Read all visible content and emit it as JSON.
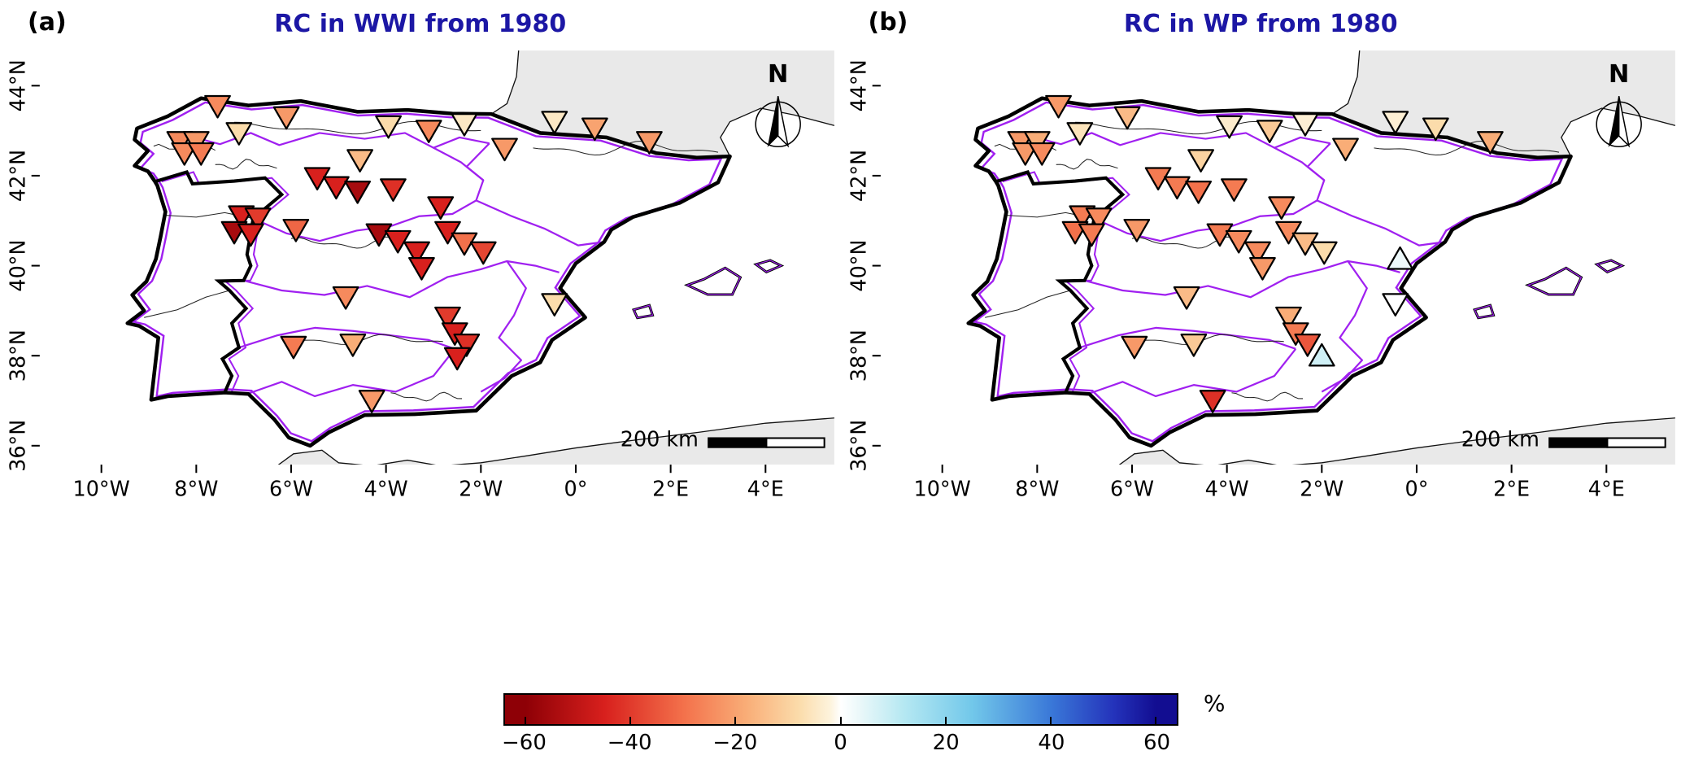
{
  "colors": {
    "title_blue": "#1c17a5",
    "basin_purple": "#a020f0",
    "land_gray": "#e9e9e9",
    "coast_black": "#000000",
    "sea_white": "#ffffff"
  },
  "chart_data": {
    "type": "map-scatter",
    "marker": "triangle-down-for-negative-up-for-positive",
    "stations_format": [
      "lon_deg",
      "lat_deg",
      "rc_percent"
    ],
    "decorations": {
      "north_label": "N",
      "scalebar_label": "200 km"
    },
    "axes": {
      "x_ticks": [
        {
          "lon": -10,
          "label": "10°W"
        },
        {
          "lon": -8,
          "label": "8°W"
        },
        {
          "lon": -6,
          "label": "6°W"
        },
        {
          "lon": -4,
          "label": "4°W"
        },
        {
          "lon": -2,
          "label": "2°W"
        },
        {
          "lon": 0,
          "label": "0°"
        },
        {
          "lon": 2,
          "label": "2°E"
        },
        {
          "lon": 4,
          "label": "4°E"
        }
      ],
      "y_ticks": [
        {
          "lat": 44,
          "label": "44°N"
        },
        {
          "lat": 42,
          "label": "42°N"
        },
        {
          "lat": 40,
          "label": "40°N"
        },
        {
          "lat": 38,
          "label": "38°N"
        },
        {
          "lat": 36,
          "label": "36°N"
        }
      ]
    },
    "panels": [
      {
        "label": "(a)",
        "title": "RC in WWI from 1980",
        "stations": [
          [
            -7.55,
            43.55,
            -25
          ],
          [
            -6.1,
            43.3,
            -22
          ],
          [
            -7.1,
            42.95,
            -8
          ],
          [
            -8.35,
            42.75,
            -25
          ],
          [
            -8.0,
            42.75,
            -22
          ],
          [
            -8.25,
            42.5,
            -25
          ],
          [
            -7.9,
            42.5,
            -28
          ],
          [
            -3.95,
            43.1,
            -8
          ],
          [
            -3.1,
            43.0,
            -25
          ],
          [
            -2.35,
            43.15,
            -5
          ],
          [
            -0.45,
            43.2,
            -5
          ],
          [
            0.4,
            43.05,
            -20
          ],
          [
            1.55,
            42.75,
            -22
          ],
          [
            -1.5,
            42.6,
            -22
          ],
          [
            -4.55,
            42.35,
            -15
          ],
          [
            -5.45,
            41.95,
            -45
          ],
          [
            -5.05,
            41.75,
            -45
          ],
          [
            -4.6,
            41.65,
            -55
          ],
          [
            -3.85,
            41.7,
            -42
          ],
          [
            -2.85,
            41.3,
            -45
          ],
          [
            -7.05,
            41.1,
            -45
          ],
          [
            -6.7,
            41.05,
            -40
          ],
          [
            -7.2,
            40.75,
            -55
          ],
          [
            -6.85,
            40.7,
            -45
          ],
          [
            -5.9,
            40.8,
            -32
          ],
          [
            -4.15,
            40.7,
            -55
          ],
          [
            -3.75,
            40.55,
            -45
          ],
          [
            -3.35,
            40.3,
            -45
          ],
          [
            -2.7,
            40.75,
            -45
          ],
          [
            -2.35,
            40.5,
            -30
          ],
          [
            -3.25,
            39.95,
            -45
          ],
          [
            -1.95,
            40.3,
            -38
          ],
          [
            -4.85,
            39.3,
            -25
          ],
          [
            -0.45,
            39.15,
            -8
          ],
          [
            -2.7,
            38.85,
            -40
          ],
          [
            -2.55,
            38.5,
            -45
          ],
          [
            -2.3,
            38.25,
            -42
          ],
          [
            -5.95,
            38.2,
            -28
          ],
          [
            -4.7,
            38.25,
            -18
          ],
          [
            -2.5,
            37.95,
            -45
          ],
          [
            -4.3,
            37.0,
            -22
          ]
        ]
      },
      {
        "label": "(b)",
        "title": "RC in WP from 1980",
        "stations": [
          [
            -7.55,
            43.55,
            -22
          ],
          [
            -6.1,
            43.3,
            -15
          ],
          [
            -7.1,
            42.95,
            -6
          ],
          [
            -8.35,
            42.75,
            -22
          ],
          [
            -8.0,
            42.75,
            -18
          ],
          [
            -8.25,
            42.5,
            -22
          ],
          [
            -7.9,
            42.5,
            -25
          ],
          [
            -3.95,
            43.1,
            -4
          ],
          [
            -3.1,
            43.0,
            -12
          ],
          [
            -2.35,
            43.15,
            -3
          ],
          [
            -0.45,
            43.2,
            -3
          ],
          [
            0.4,
            43.05,
            -8
          ],
          [
            1.55,
            42.75,
            -18
          ],
          [
            -1.5,
            42.6,
            -18
          ],
          [
            -4.55,
            42.35,
            -10
          ],
          [
            -5.45,
            41.95,
            -28
          ],
          [
            -5.05,
            41.75,
            -28
          ],
          [
            -4.6,
            41.65,
            -30
          ],
          [
            -3.85,
            41.7,
            -28
          ],
          [
            -2.85,
            41.3,
            -25
          ],
          [
            -7.05,
            41.1,
            -28
          ],
          [
            -6.7,
            41.05,
            -25
          ],
          [
            -7.2,
            40.75,
            -30
          ],
          [
            -6.85,
            40.7,
            -28
          ],
          [
            -5.9,
            40.8,
            -22
          ],
          [
            -4.15,
            40.7,
            -28
          ],
          [
            -3.75,
            40.55,
            -25
          ],
          [
            -3.35,
            40.3,
            -25
          ],
          [
            -2.7,
            40.75,
            -25
          ],
          [
            -2.35,
            40.5,
            -15
          ],
          [
            -3.25,
            39.95,
            -22
          ],
          [
            -1.95,
            40.3,
            -8
          ],
          [
            -0.35,
            40.15,
            3
          ],
          [
            -4.85,
            39.3,
            -15
          ],
          [
            -0.45,
            39.15,
            0
          ],
          [
            -2.7,
            38.85,
            -18
          ],
          [
            -2.55,
            38.5,
            -28
          ],
          [
            -2.3,
            38.25,
            -35
          ],
          [
            -5.95,
            38.2,
            -22
          ],
          [
            -4.7,
            38.25,
            -12
          ],
          [
            -2.0,
            38.0,
            8
          ],
          [
            -4.3,
            37.0,
            -42
          ]
        ]
      }
    ],
    "colorbar": {
      "min": -60,
      "max": 60,
      "unit": "%",
      "ticks": [
        -60,
        -40,
        -20,
        0,
        20,
        40,
        60
      ],
      "tick_labels": [
        "−60",
        "−40",
        "−20",
        "0",
        "20",
        "40",
        "60"
      ],
      "stops": [
        [
          -60,
          "#8e0006"
        ],
        [
          -45,
          "#d8201d"
        ],
        [
          -30,
          "#f3714b"
        ],
        [
          -18,
          "#f9ad77"
        ],
        [
          -8,
          "#fbdcab"
        ],
        [
          -2,
          "#fdf3dc"
        ],
        [
          0,
          "#ffffff"
        ],
        [
          4,
          "#e8f7f9"
        ],
        [
          12,
          "#b5e8f2"
        ],
        [
          25,
          "#72c8ea"
        ],
        [
          40,
          "#3a78d8"
        ],
        [
          52,
          "#2433bb"
        ],
        [
          60,
          "#120d91"
        ]
      ]
    }
  }
}
